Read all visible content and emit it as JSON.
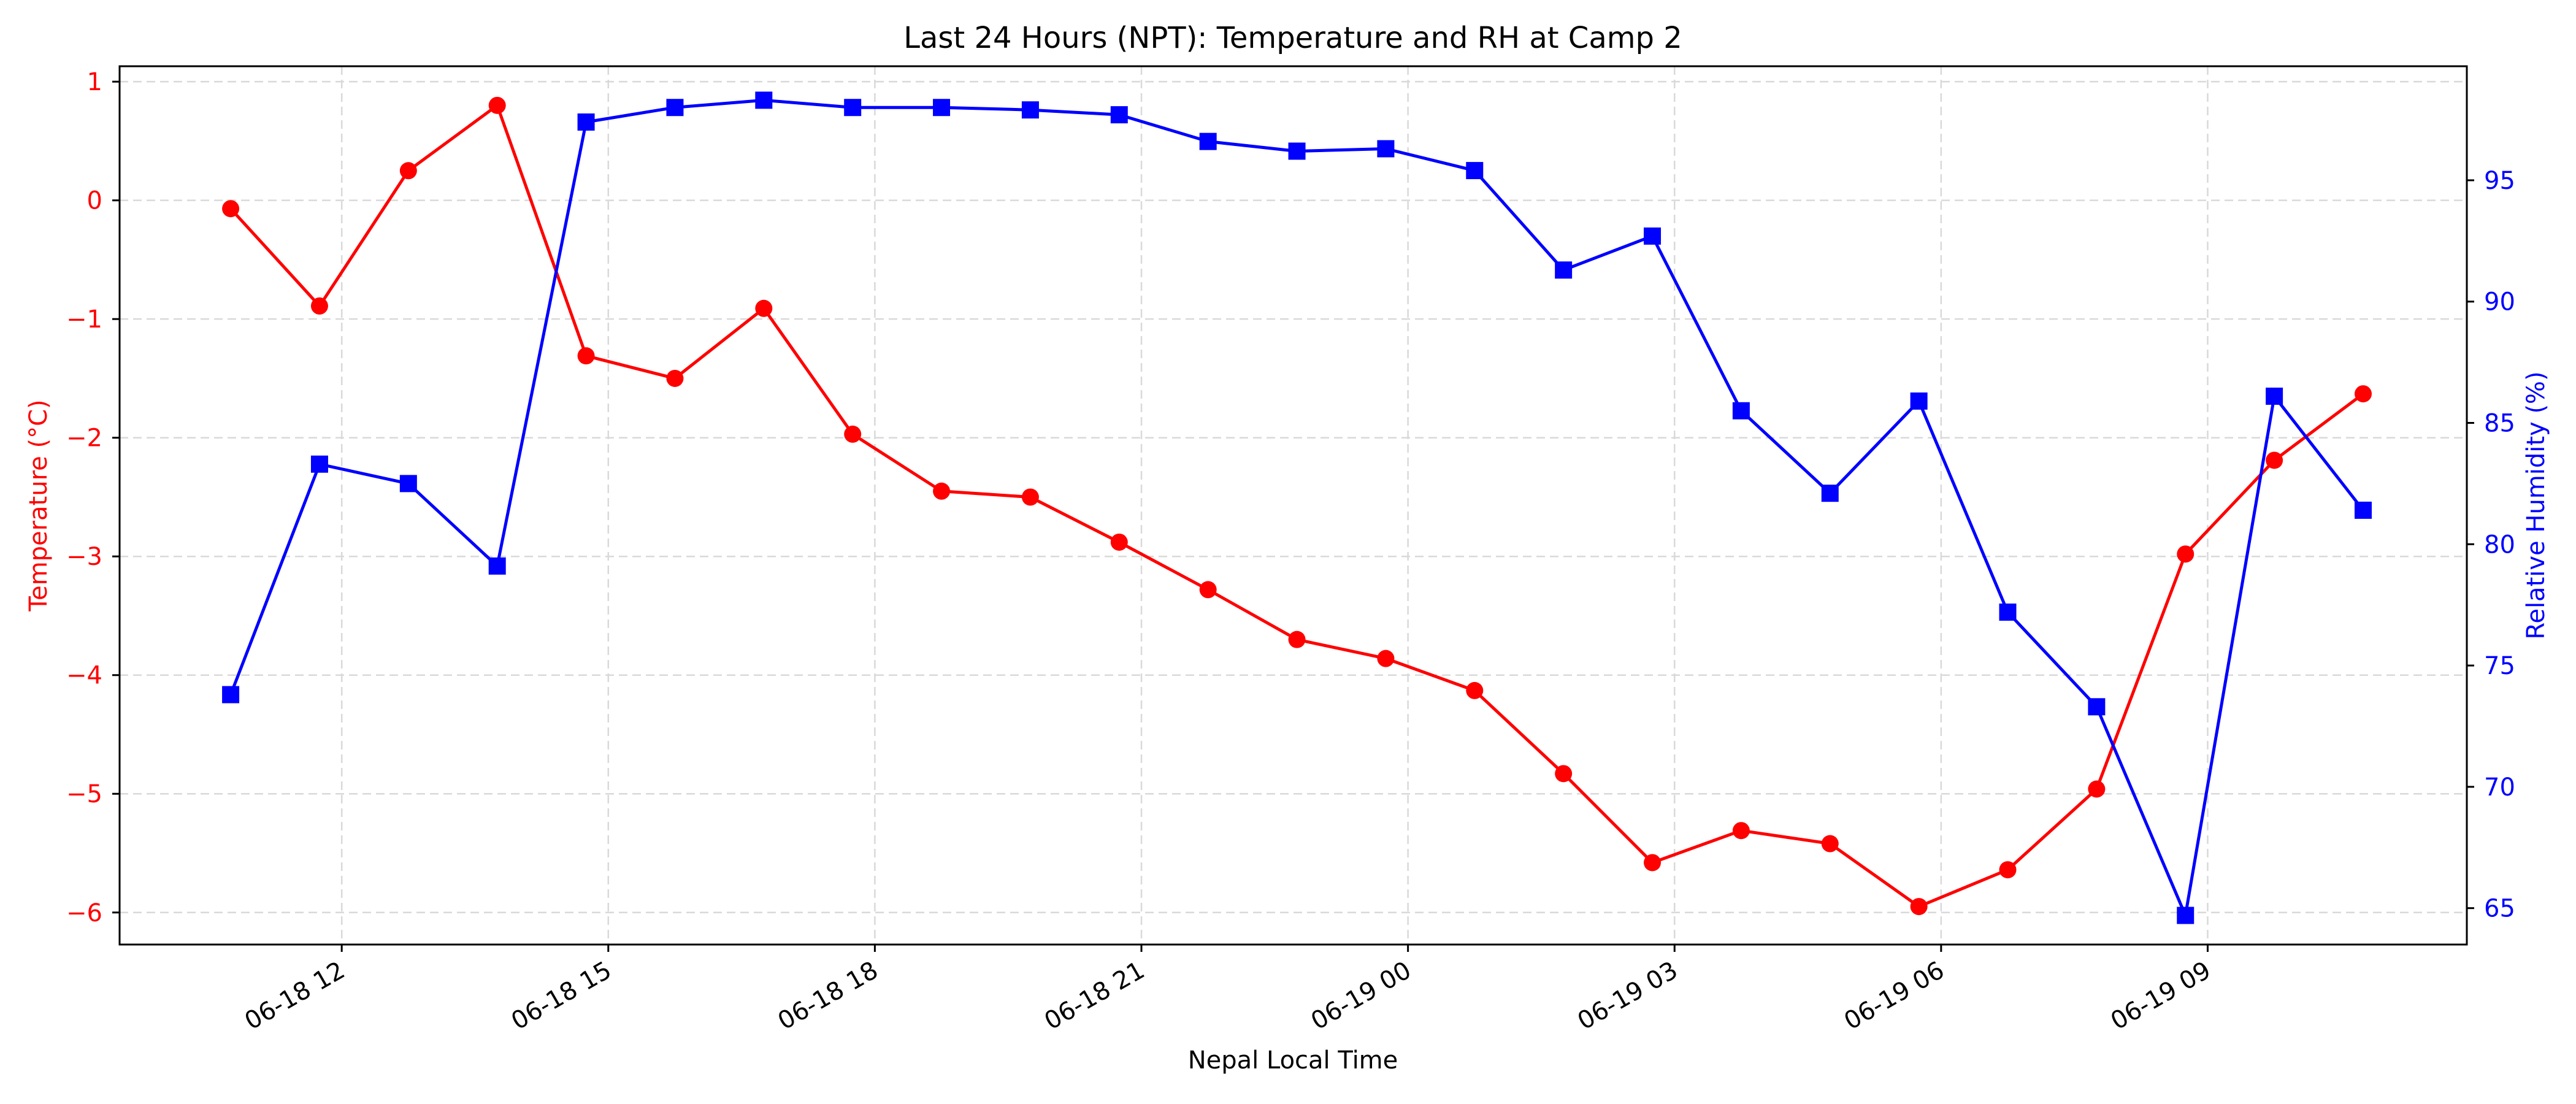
{
  "chart_data": {
    "type": "line",
    "title": "Last 24 Hours (NPT): Temperature and RH at Camp 2",
    "xlabel": "Nepal Local Time",
    "ylabel_left": "Temperature (°C)",
    "ylabel_right": "Relative Humidity (%)",
    "x_tick_labels": [
      "06-18 12",
      "06-18 15",
      "06-18 18",
      "06-18 21",
      "06-19 00",
      "06-19 03",
      "06-19 06",
      "06-19 09"
    ],
    "x_ticks": [
      "2024-06-18 12:00",
      "2024-06-18 15:00",
      "2024-06-18 18:00",
      "2024-06-18 21:00",
      "2024-06-19 00:00",
      "2024-06-19 03:00",
      "2024-06-19 06:00",
      "2024-06-19 09:00"
    ],
    "x": [
      "2024-06-18 10:45",
      "2024-06-18 11:45",
      "2024-06-18 12:45",
      "2024-06-18 13:45",
      "2024-06-18 14:45",
      "2024-06-18 15:45",
      "2024-06-18 16:45",
      "2024-06-18 17:45",
      "2024-06-18 18:45",
      "2024-06-18 19:45",
      "2024-06-18 20:45",
      "2024-06-18 21:45",
      "2024-06-18 22:45",
      "2024-06-18 23:45",
      "2024-06-19 00:45",
      "2024-06-19 01:45",
      "2024-06-19 02:45",
      "2024-06-19 03:45",
      "2024-06-19 04:45",
      "2024-06-19 05:45",
      "2024-06-19 06:45",
      "2024-06-19 07:45",
      "2024-06-19 08:45",
      "2024-06-19 09:45",
      "2024-06-19 10:45"
    ],
    "xlim": [
      "2024-06-18 09:30",
      "2024-06-19 11:55"
    ],
    "y_left_ticks": [
      1,
      0,
      -1,
      -2,
      -3,
      -4,
      -5,
      -6
    ],
    "y_left_tick_labels": [
      "1",
      "0",
      "−1",
      "−2",
      "−3",
      "−4",
      "−5",
      "−6"
    ],
    "ylim_left": [
      -6.27,
      1.13
    ],
    "y_right_ticks": [
      95,
      90,
      85,
      80,
      75,
      70,
      65
    ],
    "y_right_tick_labels": [
      "95",
      "90",
      "85",
      "80",
      "75",
      "70",
      "65"
    ],
    "ylim_right": [
      63.5,
      99.7
    ],
    "grid": true,
    "series": [
      {
        "axis": "left",
        "color": "#ff0000",
        "marker": "circle",
        "values": [
          -0.07,
          -0.89,
          0.25,
          0.8,
          -1.31,
          -1.5,
          -0.91,
          -1.97,
          -2.45,
          -2.5,
          -2.88,
          -3.28,
          -3.7,
          -3.86,
          -4.13,
          -4.83,
          -5.58,
          -5.31,
          -5.42,
          -5.95,
          -5.64,
          -4.96,
          -2.98,
          -2.19,
          -1.63
        ]
      },
      {
        "axis": "right",
        "color": "#0000ff",
        "marker": "square",
        "values": [
          73.8,
          83.3,
          82.5,
          79.1,
          97.4,
          98.0,
          98.3,
          98.0,
          98.0,
          97.9,
          97.7,
          96.6,
          96.2,
          96.3,
          95.4,
          91.3,
          92.7,
          85.5,
          82.1,
          85.9,
          77.2,
          73.3,
          64.7,
          86.1,
          81.4
        ]
      }
    ]
  }
}
